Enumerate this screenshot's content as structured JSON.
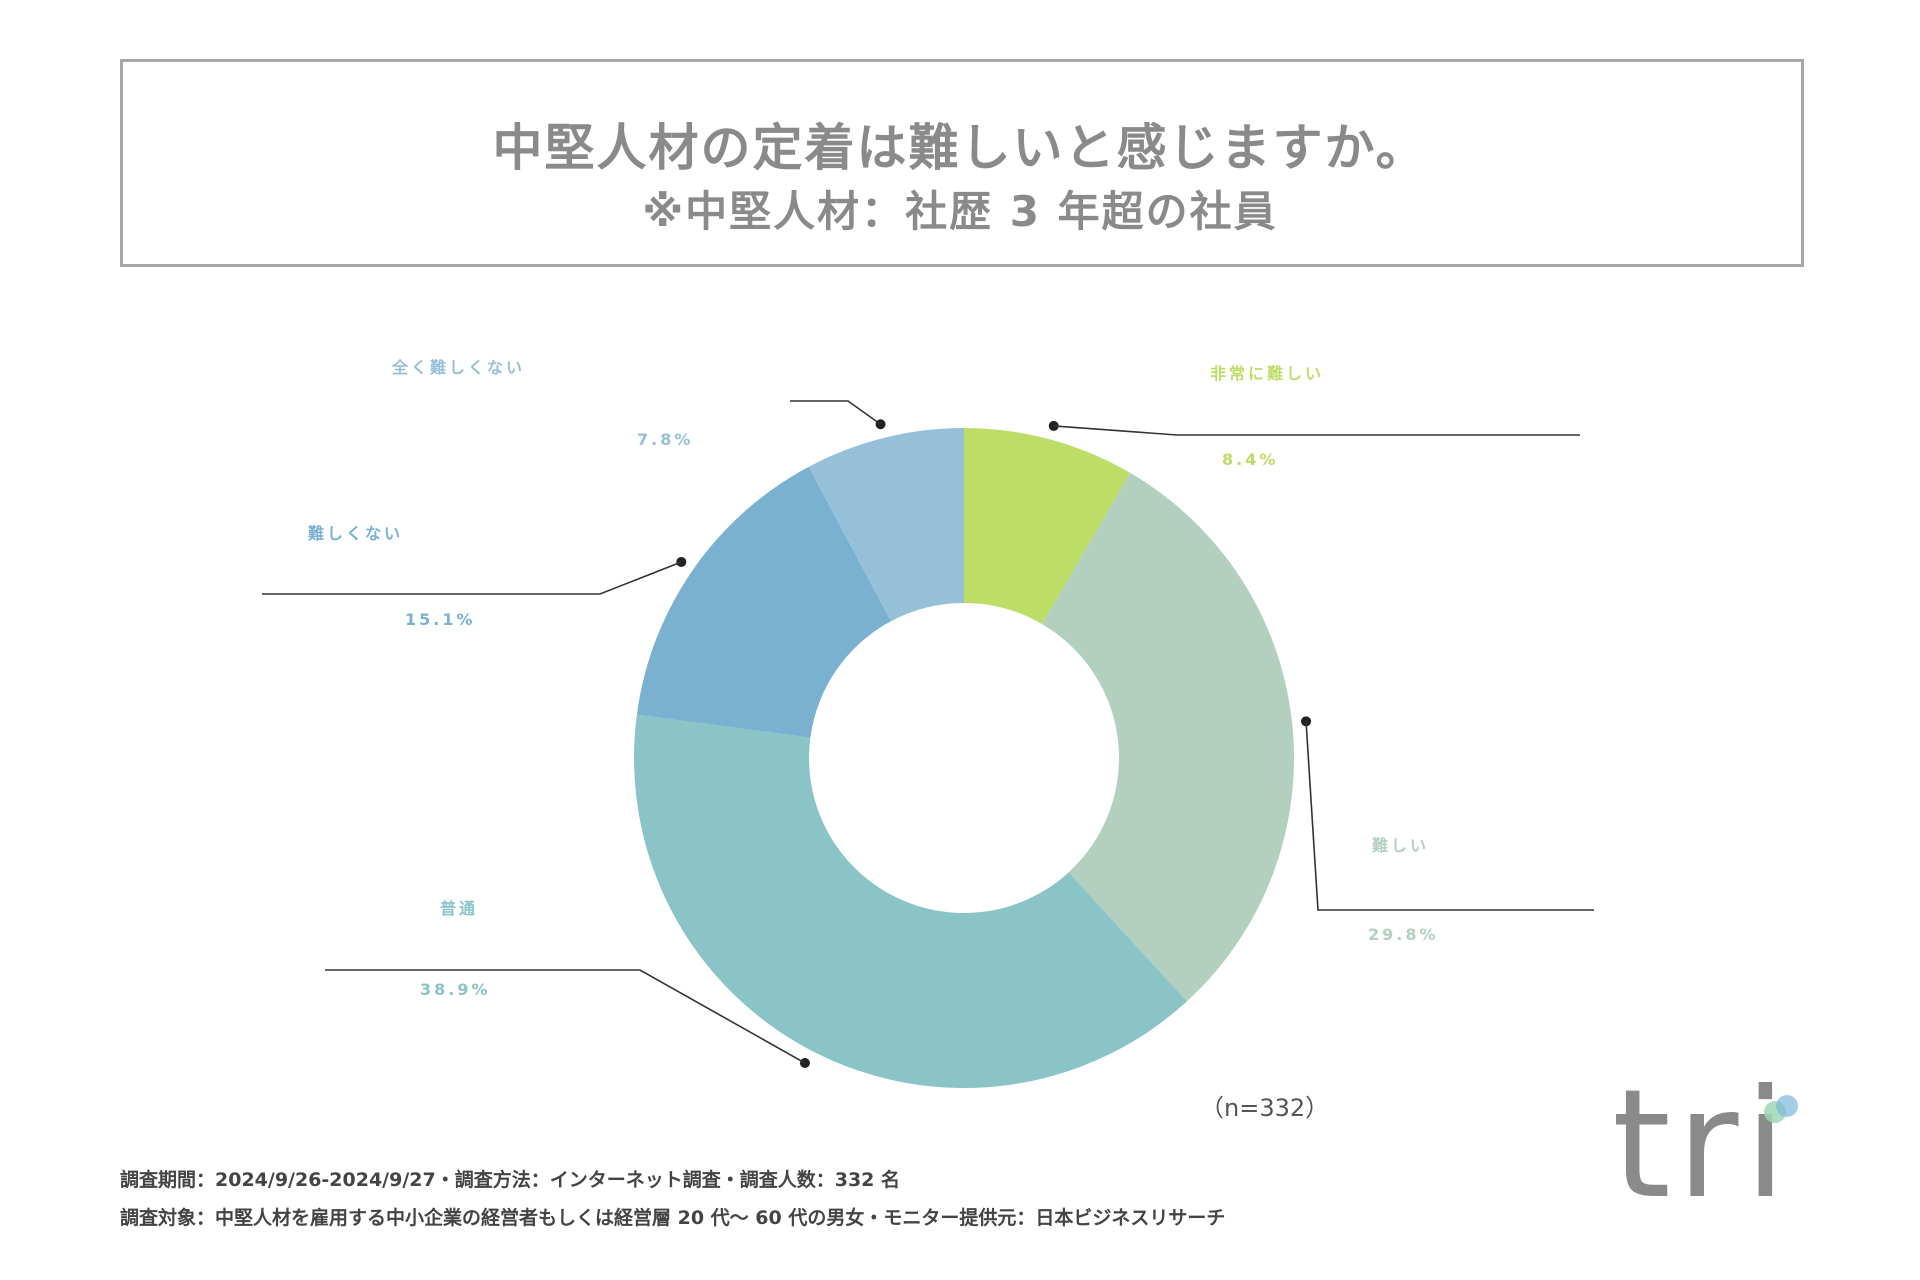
{
  "title": {
    "main": "中堅人材の定着は難しいと感じますか。",
    "sub": "※中堅人材：社歴 3 年超の社員"
  },
  "chart_data": {
    "type": "pie",
    "donut": true,
    "categories": [
      "非常に難しい",
      "難しい",
      "普通",
      "難しくない",
      "全く難しくない"
    ],
    "values": [
      8.4,
      29.8,
      38.9,
      15.1,
      7.8
    ],
    "value_labels": [
      "8.4%",
      "29.8%",
      "38.9%",
      "15.1%",
      "7.8%"
    ],
    "colors": [
      "#bedd67",
      "#b3cfc0",
      "#8ac4c7",
      "#7ab1d1",
      "#96c0d8"
    ],
    "n_label": "（n=332）"
  },
  "footer": {
    "line1": "調査期間：2024/9/26-2024/9/27・調査方法：インターネット調査・調査人数：332 名",
    "line2": "調査対象：中堅人材を雇用する中小企業の経営者もしくは経営層 20 代～ 60 代の男女・モニター提供元：日本ビジネスリサーチ"
  },
  "logo": {
    "text": "tri",
    "dot_colors": [
      "#9fd6b4",
      "#7ab8d9"
    ]
  }
}
